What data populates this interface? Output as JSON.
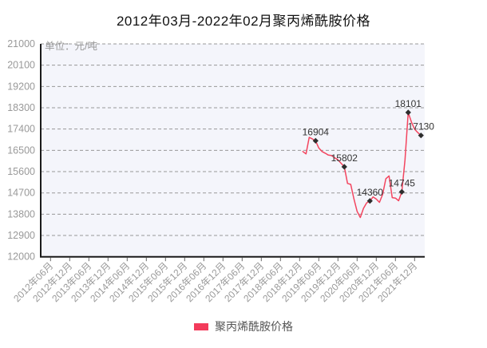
{
  "title": "2012年03月-2022年02月聚丙烯酰胺价格",
  "unit_label": "单位：元/吨",
  "legend": {
    "items": [
      {
        "label": "聚丙烯酰胺价格",
        "color": "#f33b5b"
      }
    ]
  },
  "colors": {
    "accent": "#f33b5b",
    "line": "#f3455f",
    "marker": "#2d2d2d",
    "plot_background": "#f4f5fb",
    "gridline": "#999999",
    "axis_line": "#1a1a1a",
    "tick": "#666666",
    "axis_text": "#999999",
    "annotation_text": "#333333",
    "title_text": "#111111"
  },
  "chart_data": {
    "type": "line",
    "title": "2012年03月-2022年02月聚丙烯酰胺价格",
    "xlabel": "",
    "ylabel": "单位：元/吨",
    "ylim": [
      12000,
      21000
    ],
    "yticks": [
      21000,
      20100,
      19200,
      18300,
      17400,
      16500,
      15600,
      14700,
      13800,
      12900,
      12000
    ],
    "x_range_months": [
      "2012-03",
      "2022-02"
    ],
    "xtick_labels": [
      "2012年06月",
      "2012年12月",
      "2013年06月",
      "2013年12月",
      "2014年06月",
      "2014年12月",
      "2015年06月",
      "2015年12月",
      "2016年06月",
      "2016年12月",
      "2017年06月",
      "2017年12月",
      "2018年06月",
      "2018年12月",
      "2019年06月",
      "2019年12月",
      "2020年06月",
      "2020年12月",
      "2021年06月",
      "2021年12月"
    ],
    "xtick_months": [
      "2012-06",
      "2012-12",
      "2013-06",
      "2013-12",
      "2014-06",
      "2014-12",
      "2015-06",
      "2015-12",
      "2016-06",
      "2016-12",
      "2017-06",
      "2017-12",
      "2018-06",
      "2018-12",
      "2019-06",
      "2019-12",
      "2020-06",
      "2020-12",
      "2021-06",
      "2021-12"
    ],
    "grid": "horizontal-dashed",
    "legend_position": "bottom",
    "series": [
      {
        "name": "聚丙烯酰胺价格",
        "color": "#f3455f",
        "points": [
          {
            "month": "2019-01",
            "value": 16450
          },
          {
            "month": "2019-02",
            "value": 16350
          },
          {
            "month": "2019-03",
            "value": 17050
          },
          {
            "month": "2019-04",
            "value": 16980
          },
          {
            "month": "2019-05",
            "value": 16904
          },
          {
            "month": "2019-06",
            "value": 16600
          },
          {
            "month": "2019-07",
            "value": 16450
          },
          {
            "month": "2019-08",
            "value": 16380
          },
          {
            "month": "2019-09",
            "value": 16300
          },
          {
            "month": "2019-10",
            "value": 16280
          },
          {
            "month": "2019-11",
            "value": 16180
          },
          {
            "month": "2019-12",
            "value": 16100
          },
          {
            "month": "2020-01",
            "value": 15950
          },
          {
            "month": "2020-02",
            "value": 15802
          },
          {
            "month": "2020-03",
            "value": 15100
          },
          {
            "month": "2020-04",
            "value": 15060
          },
          {
            "month": "2020-05",
            "value": 14450
          },
          {
            "month": "2020-06",
            "value": 13920
          },
          {
            "month": "2020-07",
            "value": 13660
          },
          {
            "month": "2020-08",
            "value": 14050
          },
          {
            "month": "2020-09",
            "value": 14280
          },
          {
            "month": "2020-10",
            "value": 14360
          },
          {
            "month": "2020-11",
            "value": 14530
          },
          {
            "month": "2020-12",
            "value": 14440
          },
          {
            "month": "2021-01",
            "value": 14300
          },
          {
            "month": "2021-02",
            "value": 14640
          },
          {
            "month": "2021-03",
            "value": 15300
          },
          {
            "month": "2021-04",
            "value": 15420
          },
          {
            "month": "2021-05",
            "value": 14500
          },
          {
            "month": "2021-06",
            "value": 14480
          },
          {
            "month": "2021-07",
            "value": 14370
          },
          {
            "month": "2021-08",
            "value": 14745
          },
          {
            "month": "2021-09",
            "value": 16100
          },
          {
            "month": "2021-10",
            "value": 18101
          },
          {
            "month": "2021-11",
            "value": 17700
          },
          {
            "month": "2021-12",
            "value": 17400
          },
          {
            "month": "2022-01",
            "value": 17250
          },
          {
            "month": "2022-02",
            "value": 17130
          }
        ]
      }
    ],
    "annotations": [
      {
        "month": "2019-05",
        "value": 16904,
        "label": "16904"
      },
      {
        "month": "2020-02",
        "value": 15802,
        "label": "15802"
      },
      {
        "month": "2020-10",
        "value": 14360,
        "label": "14360"
      },
      {
        "month": "2021-08",
        "value": 14745,
        "label": "14745"
      },
      {
        "month": "2021-10",
        "value": 18101,
        "label": "18101"
      },
      {
        "month": "2022-02",
        "value": 17130,
        "label": "17130"
      }
    ]
  }
}
